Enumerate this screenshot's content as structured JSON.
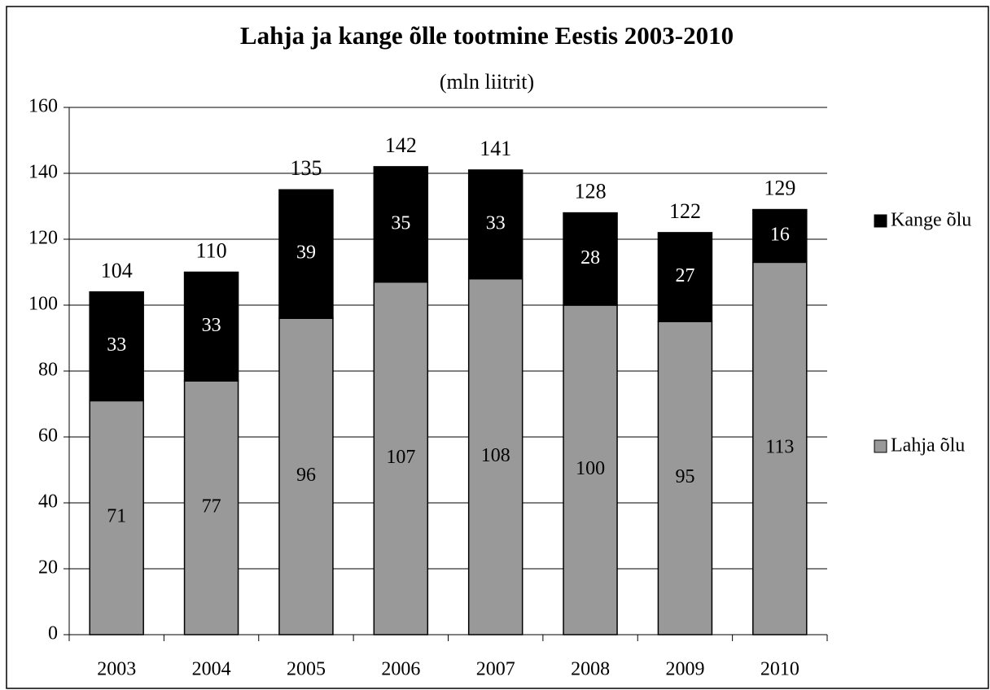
{
  "chart_data": {
    "type": "stacked_bar",
    "title": "Lahja ja kange õlle tootmine Eestis 2003-2010",
    "subtitle": "(mln liitrit)",
    "categories": [
      "2003",
      "2004",
      "2005",
      "2006",
      "2007",
      "2008",
      "2009",
      "2010"
    ],
    "series": [
      {
        "name": "Lahja õlu",
        "color": "#999999",
        "label_color": "#000000",
        "values": [
          71,
          77,
          96,
          107,
          108,
          100,
          95,
          113
        ]
      },
      {
        "name": "Kange õlu",
        "color": "#000000",
        "label_color": "#ffffff",
        "values": [
          33,
          33,
          39,
          35,
          33,
          28,
          27,
          16
        ]
      }
    ],
    "totals": [
      104,
      110,
      135,
      142,
      141,
      128,
      122,
      129
    ],
    "ylim": [
      0,
      160
    ],
    "yticks": [
      0,
      20,
      40,
      60,
      80,
      100,
      120,
      140,
      160
    ],
    "grid": true,
    "legend": "right"
  }
}
